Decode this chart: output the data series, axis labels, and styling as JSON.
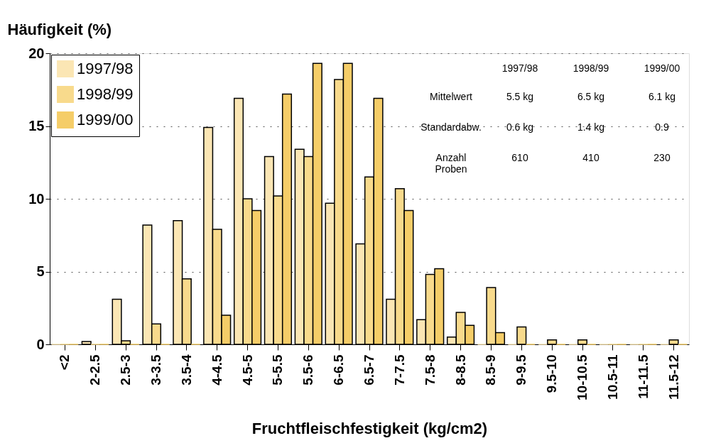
{
  "chart_data": {
    "type": "bar",
    "xlabel": "Fruchtfleischfestigkeit (kg/cm2)",
    "ylabel": "Häufigkeit (%)",
    "categories": [
      "<2",
      "2-2.5",
      "2.5-3",
      "3-3.5",
      "3.5-4",
      "4-4.5",
      "4.5-5",
      "5-5.5",
      "5.5-6",
      "6-6.5",
      "6.5-7",
      "7-7.5",
      "7.5-8",
      "8-8.5",
      "8.5-9",
      "9-9.5",
      "9.5-10",
      "10-10.5",
      "10.5-11",
      "11-11.5",
      "11.5-12"
    ],
    "series": [
      {
        "name": "1997/98",
        "color": "#fbe6b4",
        "values": [
          0,
          0.2,
          3.1,
          8.2,
          8.5,
          14.9,
          16.9,
          12.9,
          13.4,
          9.7,
          6.9,
          3.1,
          1.7,
          0.5,
          0,
          0,
          0,
          0,
          0,
          0,
          0
        ]
      },
      {
        "name": "1998/99",
        "color": "#f8da8c",
        "values": [
          0,
          0,
          0.25,
          1.4,
          4.5,
          7.9,
          10.0,
          10.2,
          12.9,
          18.2,
          11.5,
          10.7,
          4.8,
          2.2,
          3.9,
          1.2,
          0.3,
          0.3,
          0,
          0,
          0.3
        ]
      },
      {
        "name": "1999/00",
        "color": "#f5cd68",
        "values": [
          0,
          0,
          0,
          0,
          0,
          2.0,
          9.2,
          17.2,
          19.3,
          19.3,
          16.9,
          9.2,
          5.2,
          1.3,
          0.8,
          0,
          0,
          0,
          0,
          0,
          0
        ]
      }
    ],
    "ylim": [
      0,
      20
    ],
    "yticks": [
      0,
      5,
      10,
      15,
      20
    ],
    "grid": "y",
    "legend": "top left",
    "annotations": [
      "1997/98",
      "1998/99",
      "1999/00",
      "Mittelwert",
      "5.5 kg",
      "6.5 kg",
      "6.1 kg",
      "Standardabw.",
      "0.6 kg",
      "1.4 kg",
      "0.9",
      "Anzahl\nProben",
      "610",
      "410",
      "230"
    ]
  }
}
